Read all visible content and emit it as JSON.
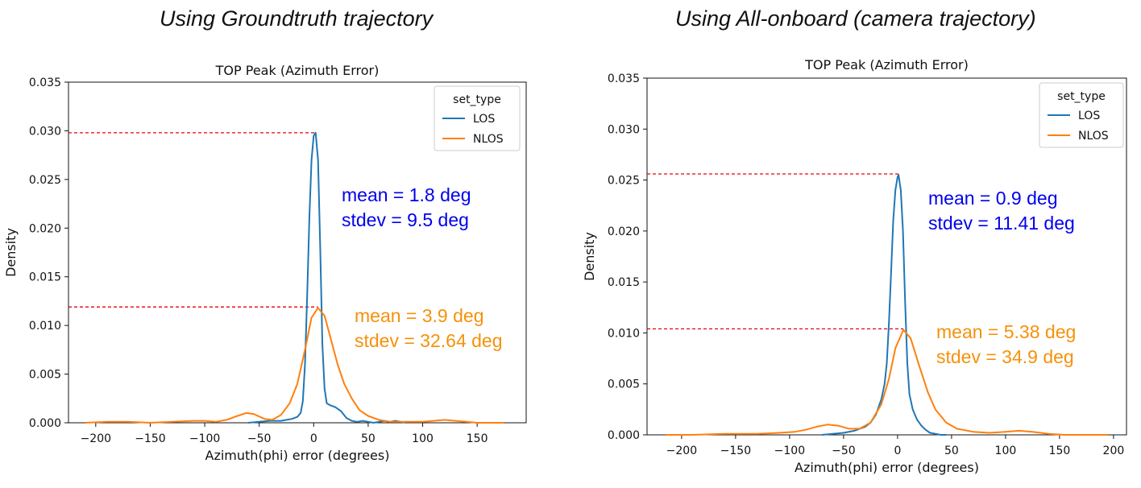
{
  "page_titles": [
    "Using Groundtruth trajectory",
    "Using All-onboard (camera trajectory)"
  ],
  "chart_data": [
    {
      "type": "line",
      "title": "TOP Peak (Azimuth Error)",
      "xlabel": "Azimuth(phi) error (degrees)",
      "ylabel": "Density",
      "xlim": [
        -225,
        195
      ],
      "ylim": [
        0,
        0.035
      ],
      "xticks": [
        -200,
        -150,
        -100,
        -50,
        0,
        50,
        100,
        150
      ],
      "yticks": [
        0.0,
        0.005,
        0.01,
        0.015,
        0.02,
        0.025,
        0.03,
        0.035
      ],
      "ytick_labels": [
        "0.000",
        "0.005",
        "0.010",
        "0.015",
        "0.020",
        "0.025",
        "0.030",
        "0.035"
      ],
      "grid": false,
      "legend": {
        "title": "set_type",
        "position": "top-right",
        "entries": [
          "LOS",
          "NLOS"
        ]
      },
      "series": [
        {
          "name": "LOS",
          "color": "#1f77b4",
          "x": [
            -60,
            -50,
            -40,
            -30,
            -25,
            -20,
            -15,
            -12,
            -10,
            -8,
            -6,
            -4,
            -2,
            0,
            1.8,
            4,
            6,
            8,
            10,
            12,
            15,
            20,
            25,
            30,
            35,
            40,
            45,
            50,
            55,
            60,
            65,
            70,
            75,
            80,
            85
          ],
          "y": [
            0.0,
            0.0001,
            0.0002,
            0.0002,
            0.0003,
            0.0004,
            0.0006,
            0.001,
            0.0022,
            0.006,
            0.013,
            0.021,
            0.027,
            0.0295,
            0.0298,
            0.027,
            0.018,
            0.008,
            0.0035,
            0.002,
            0.0018,
            0.0016,
            0.0012,
            0.0005,
            0.0002,
            0.0001,
            0.0002,
            0.0001,
            0.0,
            0.0001,
            0.0002,
            0.0001,
            0.0002,
            0.0001,
            0.0
          ]
        },
        {
          "name": "NLOS",
          "color": "#ff7f0e",
          "x": [
            -210,
            -190,
            -170,
            -150,
            -130,
            -110,
            -100,
            -90,
            -80,
            -70,
            -62,
            -55,
            -45,
            -38,
            -30,
            -22,
            -15,
            -8,
            -2,
            3.9,
            10,
            16,
            22,
            28,
            35,
            42,
            50,
            60,
            70,
            80,
            90,
            100,
            110,
            120,
            130,
            140,
            150,
            160,
            175
          ],
          "y": [
            0.0,
            0.0001,
            0.0001,
            0.0,
            0.0001,
            0.0002,
            0.0002,
            0.0001,
            0.0003,
            0.0007,
            0.001,
            0.0009,
            0.0004,
            0.0003,
            0.0008,
            0.002,
            0.004,
            0.0075,
            0.0108,
            0.0118,
            0.011,
            0.0085,
            0.006,
            0.004,
            0.0025,
            0.0013,
            0.0007,
            0.0003,
            0.0001,
            0.0001,
            0.0001,
            0.0001,
            0.0002,
            0.0003,
            0.0002,
            0.0001,
            0.0,
            0.0,
            0.0
          ]
        }
      ],
      "reference_lines": [
        {
          "series": "LOS",
          "y": 0.0298,
          "x_end": 1.8
        },
        {
          "series": "NLOS",
          "y": 0.0119,
          "x_end": 3.9
        }
      ],
      "annotations": [
        {
          "lines": [
            "mean = 1.8 deg",
            "stdev = 9.5 deg"
          ],
          "color": "#0000ee"
        },
        {
          "lines": [
            "mean = 3.9 deg",
            "stdev = 32.64 deg"
          ],
          "color": "#f5910a"
        }
      ]
    },
    {
      "type": "line",
      "title": "TOP Peak (Azimuth Error)",
      "xlabel": "Azimuth(phi) error (degrees)",
      "ylabel": "Density",
      "xlim": [
        -232,
        212
      ],
      "ylim": [
        0,
        0.035
      ],
      "xticks": [
        -200,
        -150,
        -100,
        -50,
        0,
        50,
        100,
        150,
        200
      ],
      "yticks": [
        0.0,
        0.005,
        0.01,
        0.015,
        0.02,
        0.025,
        0.03,
        0.035
      ],
      "ytick_labels": [
        "0.000",
        "0.005",
        "0.010",
        "0.015",
        "0.020",
        "0.025",
        "0.030",
        "0.035"
      ],
      "grid": false,
      "legend": {
        "title": "set_type",
        "position": "top-right",
        "entries": [
          "LOS",
          "NLOS"
        ]
      },
      "series": [
        {
          "name": "LOS",
          "color": "#1f77b4",
          "x": [
            -70,
            -60,
            -50,
            -40,
            -30,
            -25,
            -20,
            -15,
            -12,
            -10,
            -8,
            -6,
            -4,
            -2,
            0,
            0.9,
            3,
            5,
            7,
            9,
            11,
            14,
            18,
            22,
            26,
            30,
            35,
            40,
            45
          ],
          "y": [
            0.0,
            0.0001,
            0.0002,
            0.0004,
            0.0008,
            0.0012,
            0.002,
            0.0035,
            0.005,
            0.007,
            0.011,
            0.016,
            0.021,
            0.024,
            0.0253,
            0.0255,
            0.024,
            0.02,
            0.013,
            0.007,
            0.004,
            0.0025,
            0.0015,
            0.0009,
            0.0005,
            0.0002,
            0.0001,
            0.0,
            0.0
          ]
        },
        {
          "name": "NLOS",
          "color": "#ff7f0e",
          "x": [
            -215,
            -190,
            -160,
            -130,
            -110,
            -95,
            -85,
            -75,
            -65,
            -55,
            -45,
            -35,
            -25,
            -15,
            -8,
            -2,
            5.4,
            12,
            20,
            28,
            35,
            45,
            55,
            70,
            85,
            100,
            112,
            125,
            140,
            155,
            170,
            185,
            195
          ],
          "y": [
            0.0,
            0.0,
            0.0001,
            0.0001,
            0.0002,
            0.0003,
            0.0005,
            0.0008,
            0.001,
            0.0009,
            0.0006,
            0.0006,
            0.0012,
            0.003,
            0.0055,
            0.0085,
            0.0103,
            0.0095,
            0.0068,
            0.0042,
            0.0025,
            0.0012,
            0.0006,
            0.0003,
            0.0002,
            0.0003,
            0.0004,
            0.0003,
            0.0001,
            0.0,
            0.0,
            0.0,
            0.0
          ]
        }
      ],
      "reference_lines": [
        {
          "series": "LOS",
          "y": 0.0256,
          "x_end": 0.9
        },
        {
          "series": "NLOS",
          "y": 0.0104,
          "x_end": 5.38
        }
      ],
      "annotations": [
        {
          "lines": [
            "mean = 0.9 deg",
            "stdev = 11.41 deg"
          ],
          "color": "#0000ee"
        },
        {
          "lines": [
            "mean = 5.38 deg",
            "stdev = 34.9 deg"
          ],
          "color": "#f5910a"
        }
      ]
    }
  ]
}
